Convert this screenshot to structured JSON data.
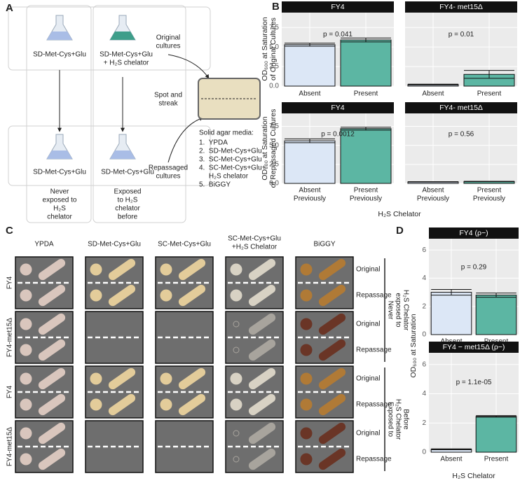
{
  "panel_labels": [
    "A",
    "B",
    "C",
    "D"
  ],
  "diagram": {
    "top_flasks": [
      [
        "SD-Met-Cys+Glu"
      ],
      [
        "SD-Met-Cys+Glu",
        "+ H₂S chelator"
      ]
    ],
    "bottom_flasks": [
      [
        "SD-Met-Cys+Glu"
      ],
      [
        "SD-Met-Cys+Glu"
      ]
    ],
    "conditions": [
      [
        "Never",
        "exposed to",
        "H₂S",
        "chelator"
      ],
      [
        "Exposed",
        "to H₂S",
        "chelator",
        "before"
      ]
    ],
    "original": [
      "Original",
      "cultures"
    ],
    "spot": [
      "Spot and",
      "streak"
    ],
    "repassaged": [
      "Repassaged",
      "cultures"
    ],
    "media_title": "Solid agar media:",
    "media": [
      "1.  YPDA",
      "2.  SD-Met-Cys+Glu",
      "3.  SC-Met-Cys+Glu",
      "4.  SC-Met-Cys+Glu+",
      "     H₂S chelator",
      "5.  BiGGY"
    ]
  },
  "plates": {
    "columns": [
      [
        "YPDA"
      ],
      [
        "SD-Met-Cys+Glu"
      ],
      [
        "SC-Met-Cys+Glu"
      ],
      [
        "SC-Met-Cys+Glu",
        "+H₂S Chelator"
      ],
      [
        "BiGGY"
      ]
    ],
    "rows": [
      "FY4",
      "FY4-met15Δ",
      "FY4",
      "FY4-met15Δ"
    ],
    "side_labels": [
      "Original",
      "Repassage"
    ],
    "groups": [
      [
        "Never",
        "exposed to",
        "H₂S Chelator"
      ],
      [
        "Exposed to",
        "H₂S Chelator",
        "Before"
      ]
    ]
  },
  "panel_b": {
    "y_labels": [
      [
        "OD₆₀₀ at Saturation",
        "of Original Cultures"
      ],
      [
        "OD₆₀₀ at Saturation",
        "of Repassaged Cultures"
      ]
    ],
    "x_title": "H₂S Chelator"
  },
  "panel_d": {
    "y_label": "OD₆₀₀ at Saturation",
    "x_title": "H₂S Chelator"
  },
  "chart_data": [
    {
      "type": "bar",
      "title": "FY4",
      "categories": [
        [
          "Absent"
        ],
        [
          "Present"
        ]
      ],
      "values": [
        5.3,
        5.9
      ],
      "errors": [
        0.2,
        0.25
      ],
      "colors": [
        "#dce7f6",
        "#5cb6a3"
      ],
      "annotation": "p = 0.041",
      "ylim": [
        0,
        9.4
      ],
      "yticks": [
        {
          "value": 0,
          "label": "0.0"
        },
        2.5,
        {
          "value": 5,
          "label": "5.0"
        },
        7.5
      ]
    },
    {
      "type": "bar",
      "title": "FY4- met15Δ",
      "categories": [
        [
          "Absent"
        ],
        [
          "Present"
        ]
      ],
      "values": [
        0.2,
        1.5
      ],
      "errors": [
        0.05,
        0.5
      ],
      "colors": [
        "#dce7f6",
        "#5cb6a3"
      ],
      "annotation": "p = 0.01",
      "ylim": [
        0,
        9.4
      ],
      "yticks": [
        0,
        2.5,
        5,
        7.5
      ]
    },
    {
      "type": "bar",
      "title": "FY4",
      "categories": [
        [
          "Absent",
          "Previously"
        ],
        [
          "Present",
          "Previously"
        ]
      ],
      "values": [
        5.6,
        7.2
      ],
      "errors": [
        0.25,
        0.2
      ],
      "colors": [
        "#dce7f6",
        "#5cb6a3"
      ],
      "annotation": "p = 0.0012",
      "ylim": [
        0,
        9.2
      ],
      "yticks": [
        {
          "value": 0,
          "label": "0.0"
        },
        2.5,
        {
          "value": 5,
          "label": "5.0"
        },
        7.5
      ]
    },
    {
      "type": "bar",
      "title": "FY4- met15Δ",
      "categories": [
        [
          "Absent",
          "Previously"
        ],
        [
          "Present",
          "Previously"
        ]
      ],
      "values": [
        0.2,
        0.25
      ],
      "errors": [
        0.03,
        0.03
      ],
      "colors": [
        "#dce7f6",
        "#5cb6a3"
      ],
      "annotation": "p = 0.56",
      "ylim": [
        0,
        9.2
      ],
      "yticks": [
        0,
        2.5,
        5,
        7.5
      ]
    },
    {
      "type": "bar",
      "title": "FY4 (ρ−)",
      "categories": [
        [
          "Absent"
        ],
        [
          "Present"
        ]
      ],
      "values": [
        3.0,
        2.8
      ],
      "errors": [
        0.2,
        0.15
      ],
      "colors": [
        "#dce7f6",
        "#5cb6a3"
      ],
      "annotation": "p = 0.29",
      "ylim": [
        0,
        6.8
      ],
      "yticks": [
        0,
        2,
        4,
        6
      ]
    },
    {
      "type": "bar",
      "title": "FY4 − met15Δ (ρ−)",
      "categories": [
        [
          "Absent"
        ],
        [
          "Present"
        ]
      ],
      "values": [
        0.2,
        2.45
      ],
      "errors": [
        0.03,
        0.05
      ],
      "colors": [
        "#dce7f6",
        "#5cb6a3"
      ],
      "annotation": "p = 1.1e-05",
      "ylim": [
        0,
        6.8
      ],
      "yticks": [
        0,
        2,
        4,
        6
      ]
    }
  ]
}
